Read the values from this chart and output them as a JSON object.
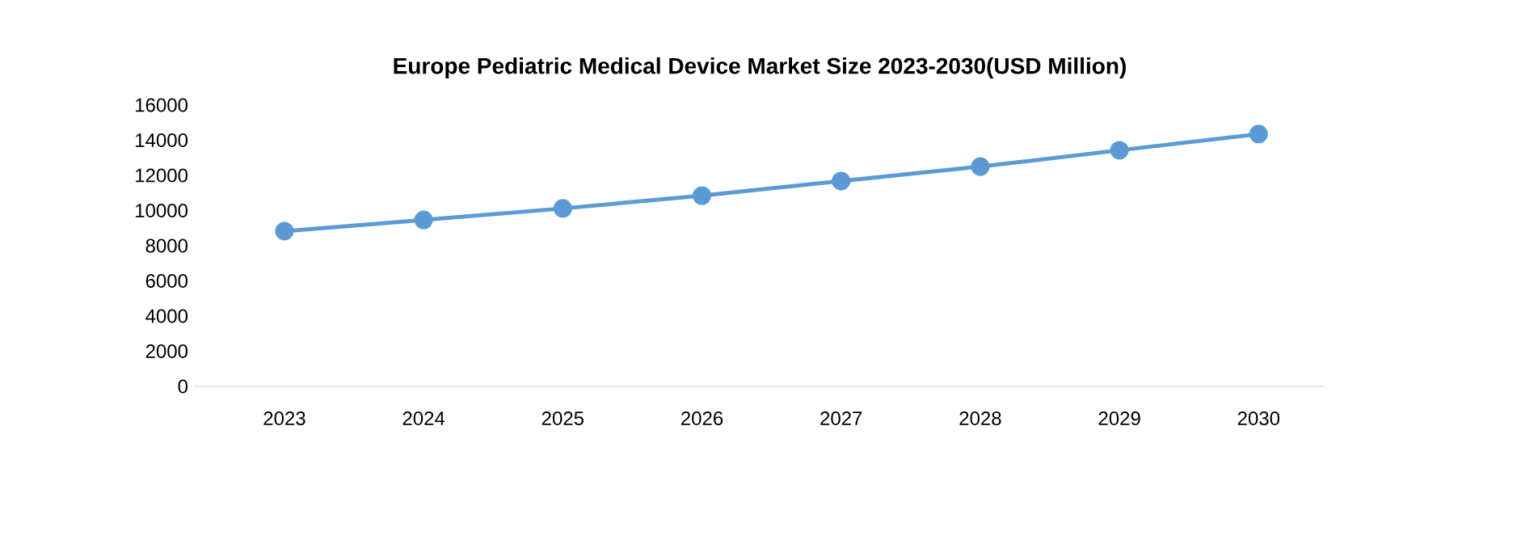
{
  "chart_data": {
    "type": "line",
    "title": "Europe Pediatric Medical Device Market Size 2023-2030(USD Million)",
    "categories": [
      "2023",
      "2024",
      "2025",
      "2026",
      "2027",
      "2028",
      "2029",
      "2030"
    ],
    "values": [
      8830,
      9470,
      10120,
      10850,
      11680,
      12500,
      13430,
      14350
    ],
    "color": "#5b9bd5",
    "marker": "circle",
    "ylim": [
      0,
      16000
    ],
    "yticks": [
      0,
      2000,
      4000,
      6000,
      8000,
      10000,
      12000,
      14000,
      16000
    ]
  }
}
